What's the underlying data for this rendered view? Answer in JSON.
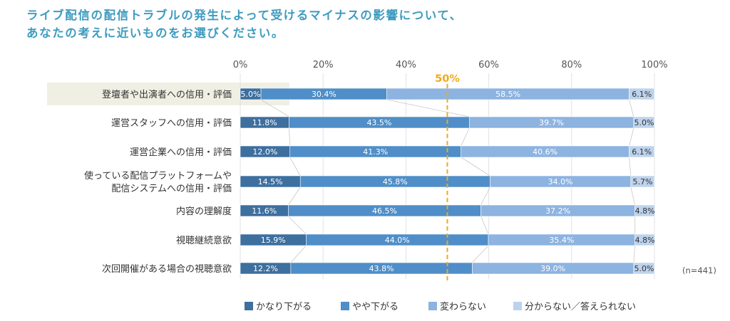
{
  "header": {
    "title_line1": "ライブ配信の配信トラブルの発生によって受けるマイナスの影響について、",
    "title_line2": "あなたの考えに近いものをお選びください。"
  },
  "chart_data": {
    "type": "bar",
    "orientation": "horizontal",
    "stacked": true,
    "xlim": [
      0,
      100
    ],
    "x_ticks": [
      "0%",
      "20%",
      "40%",
      "60%",
      "80%",
      "100%"
    ],
    "categories": [
      [
        "登壇者や出演者への信用・評価"
      ],
      [
        "運営スタッフへの信用・評価"
      ],
      [
        "運営企業への信用・評価"
      ],
      [
        "使っている配信プラットフォームや",
        "配信システムへの信用・評価"
      ],
      [
        "内容の理解度"
      ],
      [
        "視聴継続意欲"
      ],
      [
        "次回開催がある場合の視聴意欲"
      ]
    ],
    "highlighted_category": 0,
    "series": [
      {
        "name": "かなり下がる",
        "color": "#3d6f9f",
        "values": [
          5.0,
          11.8,
          12.0,
          14.5,
          11.6,
          15.9,
          12.2
        ]
      },
      {
        "name": "やや下がる",
        "color": "#4f8ec8",
        "values": [
          30.4,
          43.5,
          41.3,
          45.8,
          46.5,
          44.0,
          43.8
        ]
      },
      {
        "name": "変わらない",
        "color": "#8db3e0",
        "values": [
          58.5,
          39.7,
          40.6,
          34.0,
          37.2,
          35.4,
          39.0
        ]
      },
      {
        "name": "分からない／答えられない",
        "color": "#bdd3ec",
        "values": [
          6.1,
          5.0,
          6.1,
          5.7,
          4.8,
          4.8,
          5.0
        ]
      }
    ],
    "reference_line": {
      "value": 50,
      "label": "50%",
      "color": "#f2a81d"
    },
    "grid": true,
    "legend": "bottom",
    "sample_note": "(n=441)"
  }
}
